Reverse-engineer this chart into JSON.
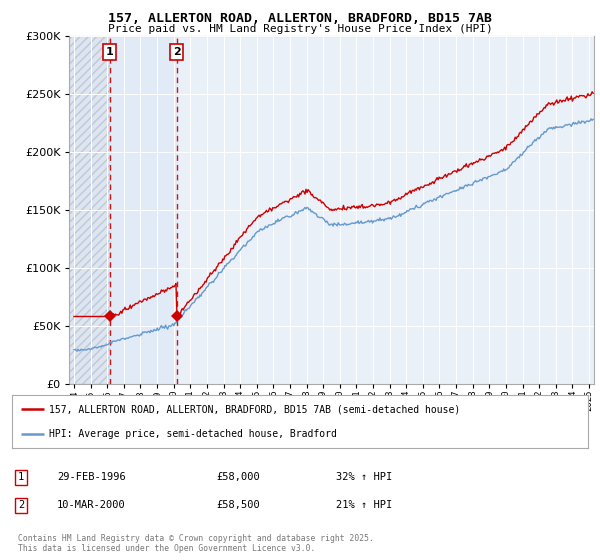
{
  "title": "157, ALLERTON ROAD, ALLERTON, BRADFORD, BD15 7AB",
  "subtitle": "Price paid vs. HM Land Registry's House Price Index (HPI)",
  "legend_line1": "157, ALLERTON ROAD, ALLERTON, BRADFORD, BD15 7AB (semi-detached house)",
  "legend_line2": "HPI: Average price, semi-detached house, Bradford",
  "purchase1_label": "1",
  "purchase1_date": "29-FEB-1996",
  "purchase1_price": "£58,000",
  "purchase1_hpi": "32% ↑ HPI",
  "purchase1_year": 1996.15,
  "purchase1_value": 58000,
  "purchase2_label": "2",
  "purchase2_date": "10-MAR-2000",
  "purchase2_price": "£58,500",
  "purchase2_hpi": "21% ↑ HPI",
  "purchase2_year": 2000.19,
  "purchase2_value": 58500,
  "red_color": "#cc0000",
  "blue_color": "#6699cc",
  "background_plot": "#eaf0f8",
  "background_hatch": "#dde5f0",
  "background_highlight": "#deeaf8",
  "ylim": [
    0,
    300000
  ],
  "xlim_start": 1993.7,
  "xlim_end": 2025.3,
  "footer": "Contains HM Land Registry data © Crown copyright and database right 2025.\nThis data is licensed under the Open Government Licence v3.0."
}
